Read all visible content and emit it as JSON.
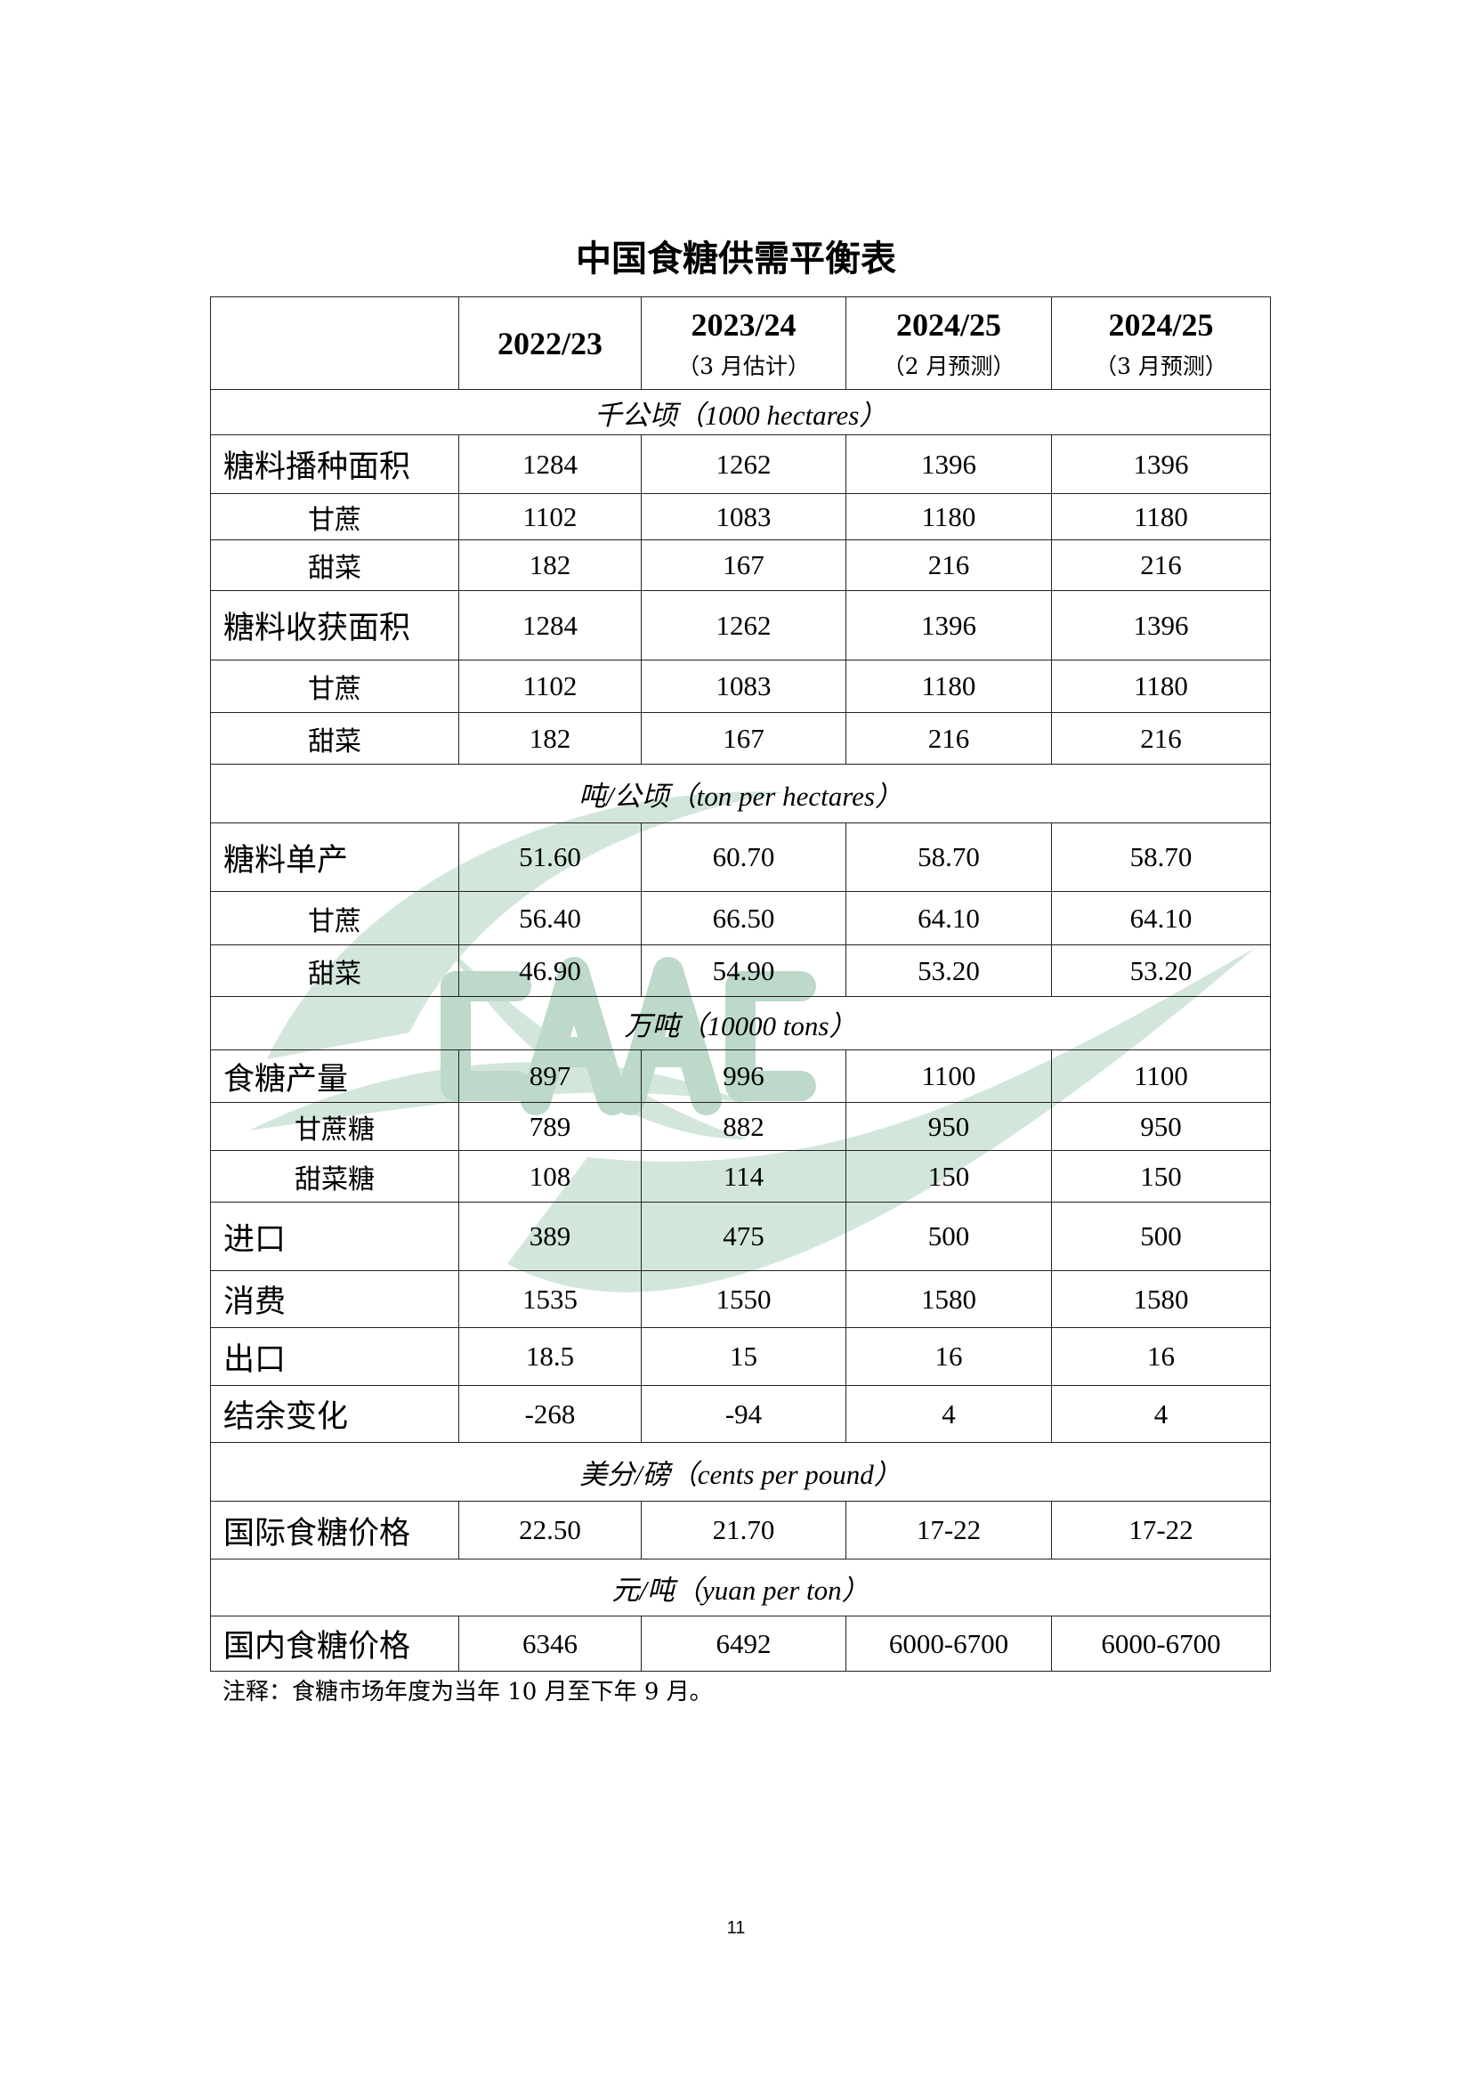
{
  "title": "中国食糖供需平衡表",
  "columns": [
    {
      "year": "2022/23",
      "note": ""
    },
    {
      "year": "2023/24",
      "note": "（3 月估计）"
    },
    {
      "year": "2024/25",
      "note": "（2 月预测）"
    },
    {
      "year": "2024/25",
      "note": "（3 月预测）"
    }
  ],
  "rows": [
    {
      "type": "unit",
      "label": "千公顷（1000 hectares）"
    },
    {
      "type": "main",
      "label": "糖料播种面积",
      "values": [
        "1284",
        "1262",
        "1396",
        "1396"
      ]
    },
    {
      "type": "sub",
      "label": "甘蔗",
      "values": [
        "1102",
        "1083",
        "1180",
        "1180"
      ]
    },
    {
      "type": "sub",
      "label": "甜菜",
      "values": [
        "182",
        "167",
        "216",
        "216"
      ]
    },
    {
      "type": "main",
      "label": "糖料收获面积",
      "values": [
        "1284",
        "1262",
        "1396",
        "1396"
      ]
    },
    {
      "type": "sub",
      "label": "甘蔗",
      "values": [
        "1102",
        "1083",
        "1180",
        "1180"
      ]
    },
    {
      "type": "sub",
      "label": "甜菜",
      "values": [
        "182",
        "167",
        "216",
        "216"
      ]
    },
    {
      "type": "unit",
      "label": "吨/公顷（ton per hectares）"
    },
    {
      "type": "main",
      "label": "糖料单产",
      "values": [
        "51.60",
        "60.70",
        "58.70",
        "58.70"
      ]
    },
    {
      "type": "sub",
      "label": "甘蔗",
      "values": [
        "56.40",
        "66.50",
        "64.10",
        "64.10"
      ]
    },
    {
      "type": "sub",
      "label": "甜菜",
      "values": [
        "46.90",
        "54.90",
        "53.20",
        "53.20"
      ]
    },
    {
      "type": "unit",
      "label": "万吨（10000 tons）"
    },
    {
      "type": "main",
      "label": "食糖产量",
      "values": [
        "897",
        "996",
        "1100",
        "1100"
      ]
    },
    {
      "type": "sub",
      "label": "甘蔗糖",
      "values": [
        "789",
        "882",
        "950",
        "950"
      ]
    },
    {
      "type": "sub",
      "label": "甜菜糖",
      "values": [
        "108",
        "114",
        "150",
        "150"
      ]
    },
    {
      "type": "main",
      "label": "进口",
      "values": [
        "389",
        "475",
        "500",
        "500"
      ]
    },
    {
      "type": "main",
      "label": "消费",
      "values": [
        "1535",
        "1550",
        "1580",
        "1580"
      ]
    },
    {
      "type": "main",
      "label": "出口",
      "values": [
        "18.5",
        "15",
        "16",
        "16"
      ]
    },
    {
      "type": "main",
      "label": "结余变化",
      "values": [
        "-268",
        "-94",
        "4",
        "4"
      ]
    },
    {
      "type": "unit",
      "label": "美分/磅（cents per pound）"
    },
    {
      "type": "main",
      "label": "国际食糖价格",
      "values": [
        "22.50",
        "21.70",
        "17-22",
        "17-22"
      ]
    },
    {
      "type": "unit",
      "label": "元/吨（yuan per ton）"
    },
    {
      "type": "main",
      "label": "国内食糖价格",
      "values": [
        "6346",
        "6492",
        "6000-6700",
        "6000-6700"
      ]
    }
  ],
  "note": "注释：食糖市场年度为当年 10 月至下年 9 月。",
  "page_number": "11",
  "watermark": {
    "text": "CAAC",
    "color": "#d3e6dc"
  }
}
